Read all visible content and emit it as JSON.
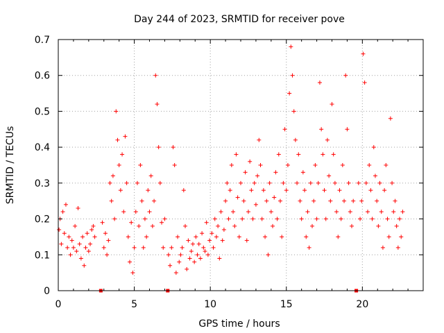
{
  "chart_data": {
    "type": "scatter",
    "title": "Day 244 of 2023, SRMTID for receiver pove",
    "xlabel": "GPS time / hours",
    "ylabel": "SRMTID / TECUs",
    "xlim": [
      0,
      24
    ],
    "ylim": [
      0,
      0.7
    ],
    "x_ticks": [
      0,
      5,
      10,
      15,
      20
    ],
    "y_ticks": [
      0,
      0.1,
      0.2,
      0.3,
      0.4,
      0.5,
      0.6,
      0.7
    ],
    "x_tick_labels": [
      "0",
      "5",
      "10",
      "15",
      "20"
    ],
    "y_tick_labels": [
      "0",
      "0.1",
      "0.2",
      "0.3",
      "0.4",
      "0.5",
      "0.6",
      "0.7"
    ],
    "grid": true,
    "marker": "plus",
    "color": "#ff0000",
    "gap_markers_x": [
      2.8,
      7.2,
      19.6
    ],
    "series": [
      {
        "name": "SRMTID",
        "points": [
          [
            0.05,
            0.17
          ],
          [
            0.12,
            0.2
          ],
          [
            0.2,
            0.13
          ],
          [
            0.3,
            0.22
          ],
          [
            0.4,
            0.16
          ],
          [
            0.5,
            0.24
          ],
          [
            0.6,
            0.12
          ],
          [
            0.7,
            0.15
          ],
          [
            0.8,
            0.1
          ],
          [
            0.9,
            0.14
          ],
          [
            1.0,
            0.12
          ],
          [
            1.1,
            0.18
          ],
          [
            1.2,
            0.11
          ],
          [
            1.3,
            0.23
          ],
          [
            1.4,
            0.13
          ],
          [
            1.5,
            0.09
          ],
          [
            1.6,
            0.15
          ],
          [
            1.7,
            0.07
          ],
          [
            1.8,
            0.12
          ],
          [
            1.9,
            0.16
          ],
          [
            2.0,
            0.11
          ],
          [
            2.1,
            0.13
          ],
          [
            2.2,
            0.17
          ],
          [
            2.3,
            0.18
          ],
          [
            2.4,
            0.15
          ],
          [
            2.9,
            0.19
          ],
          [
            3.0,
            0.12
          ],
          [
            3.1,
            0.16
          ],
          [
            3.2,
            0.1
          ],
          [
            3.3,
            0.14
          ],
          [
            3.4,
            0.3
          ],
          [
            3.5,
            0.25
          ],
          [
            3.6,
            0.32
          ],
          [
            3.7,
            0.2
          ],
          [
            3.8,
            0.5
          ],
          [
            3.9,
            0.42
          ],
          [
            4.0,
            0.35
          ],
          [
            4.1,
            0.28
          ],
          [
            4.2,
            0.38
          ],
          [
            4.3,
            0.22
          ],
          [
            4.4,
            0.43
          ],
          [
            4.5,
            0.3
          ],
          [
            4.6,
            0.15
          ],
          [
            4.7,
            0.08
          ],
          [
            4.8,
            0.19
          ],
          [
            4.9,
            0.05
          ],
          [
            5.0,
            0.12
          ],
          [
            5.1,
            0.22
          ],
          [
            5.2,
            0.3
          ],
          [
            5.3,
            0.18
          ],
          [
            5.4,
            0.35
          ],
          [
            5.5,
            0.25
          ],
          [
            5.6,
            0.12
          ],
          [
            5.7,
            0.2
          ],
          [
            5.8,
            0.15
          ],
          [
            5.9,
            0.28
          ],
          [
            6.0,
            0.22
          ],
          [
            6.1,
            0.32
          ],
          [
            6.2,
            0.18
          ],
          [
            6.3,
            0.25
          ],
          [
            6.4,
            0.6
          ],
          [
            6.5,
            0.52
          ],
          [
            6.6,
            0.4
          ],
          [
            6.7,
            0.3
          ],
          [
            6.8,
            0.19
          ],
          [
            6.9,
            0.12
          ],
          [
            7.0,
            0.2
          ],
          [
            7.25,
            0.1
          ],
          [
            7.35,
            0.07
          ],
          [
            7.45,
            0.12
          ],
          [
            7.55,
            0.4
          ],
          [
            7.65,
            0.35
          ],
          [
            7.75,
            0.05
          ],
          [
            7.85,
            0.15
          ],
          [
            7.95,
            0.08
          ],
          [
            8.05,
            0.1
          ],
          [
            8.15,
            0.12
          ],
          [
            8.25,
            0.28
          ],
          [
            8.35,
            0.18
          ],
          [
            8.45,
            0.06
          ],
          [
            8.55,
            0.14
          ],
          [
            8.65,
            0.09
          ],
          [
            8.75,
            0.11
          ],
          [
            8.85,
            0.13
          ],
          [
            8.95,
            0.08
          ],
          [
            9.05,
            0.15
          ],
          [
            9.15,
            0.1
          ],
          [
            9.25,
            0.13
          ],
          [
            9.35,
            0.09
          ],
          [
            9.45,
            0.16
          ],
          [
            9.55,
            0.12
          ],
          [
            9.65,
            0.11
          ],
          [
            9.75,
            0.19
          ],
          [
            9.85,
            0.1
          ],
          [
            9.95,
            0.14
          ],
          [
            10.1,
            0.16
          ],
          [
            10.2,
            0.12
          ],
          [
            10.3,
            0.2
          ],
          [
            10.4,
            0.15
          ],
          [
            10.5,
            0.18
          ],
          [
            10.6,
            0.09
          ],
          [
            10.7,
            0.22
          ],
          [
            10.8,
            0.14
          ],
          [
            10.9,
            0.17
          ],
          [
            11.0,
            0.25
          ],
          [
            11.1,
            0.3
          ],
          [
            11.2,
            0.2
          ],
          [
            11.3,
            0.28
          ],
          [
            11.4,
            0.35
          ],
          [
            11.5,
            0.22
          ],
          [
            11.6,
            0.18
          ],
          [
            11.7,
            0.38
          ],
          [
            11.8,
            0.26
          ],
          [
            11.9,
            0.15
          ],
          [
            12.0,
            0.3
          ],
          [
            12.1,
            0.2
          ],
          [
            12.2,
            0.25
          ],
          [
            12.3,
            0.33
          ],
          [
            12.4,
            0.14
          ],
          [
            12.5,
            0.22
          ],
          [
            12.6,
            0.36
          ],
          [
            12.7,
            0.28
          ],
          [
            12.8,
            0.2
          ],
          [
            12.9,
            0.3
          ],
          [
            13.0,
            0.24
          ],
          [
            13.1,
            0.32
          ],
          [
            13.2,
            0.42
          ],
          [
            13.3,
            0.35
          ],
          [
            13.4,
            0.2
          ],
          [
            13.5,
            0.28
          ],
          [
            13.6,
            0.15
          ],
          [
            13.7,
            0.25
          ],
          [
            13.8,
            0.1
          ],
          [
            13.9,
            0.3
          ],
          [
            14.0,
            0.22
          ],
          [
            14.1,
            0.18
          ],
          [
            14.2,
            0.26
          ],
          [
            14.3,
            0.33
          ],
          [
            14.4,
            0.2
          ],
          [
            14.5,
            0.38
          ],
          [
            14.6,
            0.25
          ],
          [
            14.7,
            0.15
          ],
          [
            14.8,
            0.3
          ],
          [
            14.9,
            0.45
          ],
          [
            15.0,
            0.28
          ],
          [
            15.1,
            0.35
          ],
          [
            15.2,
            0.55
          ],
          [
            15.3,
            0.68
          ],
          [
            15.4,
            0.6
          ],
          [
            15.5,
            0.5
          ],
          [
            15.6,
            0.42
          ],
          [
            15.7,
            0.3
          ],
          [
            15.8,
            0.38
          ],
          [
            15.9,
            0.25
          ],
          [
            16.0,
            0.2
          ],
          [
            16.1,
            0.33
          ],
          [
            16.2,
            0.28
          ],
          [
            16.3,
            0.15
          ],
          [
            16.4,
            0.22
          ],
          [
            16.5,
            0.12
          ],
          [
            16.6,
            0.3
          ],
          [
            16.7,
            0.18
          ],
          [
            16.8,
            0.25
          ],
          [
            16.9,
            0.35
          ],
          [
            17.0,
            0.2
          ],
          [
            17.1,
            0.3
          ],
          [
            17.2,
            0.58
          ],
          [
            17.3,
            0.45
          ],
          [
            17.4,
            0.38
          ],
          [
            17.5,
            0.28
          ],
          [
            17.6,
            0.2
          ],
          [
            17.7,
            0.42
          ],
          [
            17.8,
            0.32
          ],
          [
            17.9,
            0.25
          ],
          [
            18.0,
            0.52
          ],
          [
            18.1,
            0.38
          ],
          [
            18.2,
            0.3
          ],
          [
            18.3,
            0.22
          ],
          [
            18.4,
            0.15
          ],
          [
            18.5,
            0.28
          ],
          [
            18.6,
            0.2
          ],
          [
            18.7,
            0.35
          ],
          [
            18.8,
            0.25
          ],
          [
            18.9,
            0.6
          ],
          [
            19.0,
            0.45
          ],
          [
            19.1,
            0.3
          ],
          [
            19.2,
            0.22
          ],
          [
            19.3,
            0.18
          ],
          [
            19.4,
            0.25
          ],
          [
            19.75,
            0.3
          ],
          [
            19.85,
            0.2
          ],
          [
            19.95,
            0.25
          ],
          [
            20.05,
            0.66
          ],
          [
            20.15,
            0.58
          ],
          [
            20.25,
            0.3
          ],
          [
            20.35,
            0.22
          ],
          [
            20.45,
            0.35
          ],
          [
            20.55,
            0.28
          ],
          [
            20.65,
            0.2
          ],
          [
            20.75,
            0.4
          ],
          [
            20.85,
            0.32
          ],
          [
            20.95,
            0.25
          ],
          [
            21.05,
            0.18
          ],
          [
            21.15,
            0.3
          ],
          [
            21.25,
            0.22
          ],
          [
            21.35,
            0.12
          ],
          [
            21.45,
            0.28
          ],
          [
            21.55,
            0.35
          ],
          [
            21.65,
            0.2
          ],
          [
            21.75,
            0.15
          ],
          [
            21.85,
            0.48
          ],
          [
            21.95,
            0.3
          ],
          [
            22.05,
            0.22
          ],
          [
            22.15,
            0.25
          ],
          [
            22.25,
            0.18
          ],
          [
            22.35,
            0.12
          ],
          [
            22.45,
            0.2
          ],
          [
            22.55,
            0.15
          ],
          [
            22.65,
            0.22
          ]
        ]
      }
    ]
  }
}
